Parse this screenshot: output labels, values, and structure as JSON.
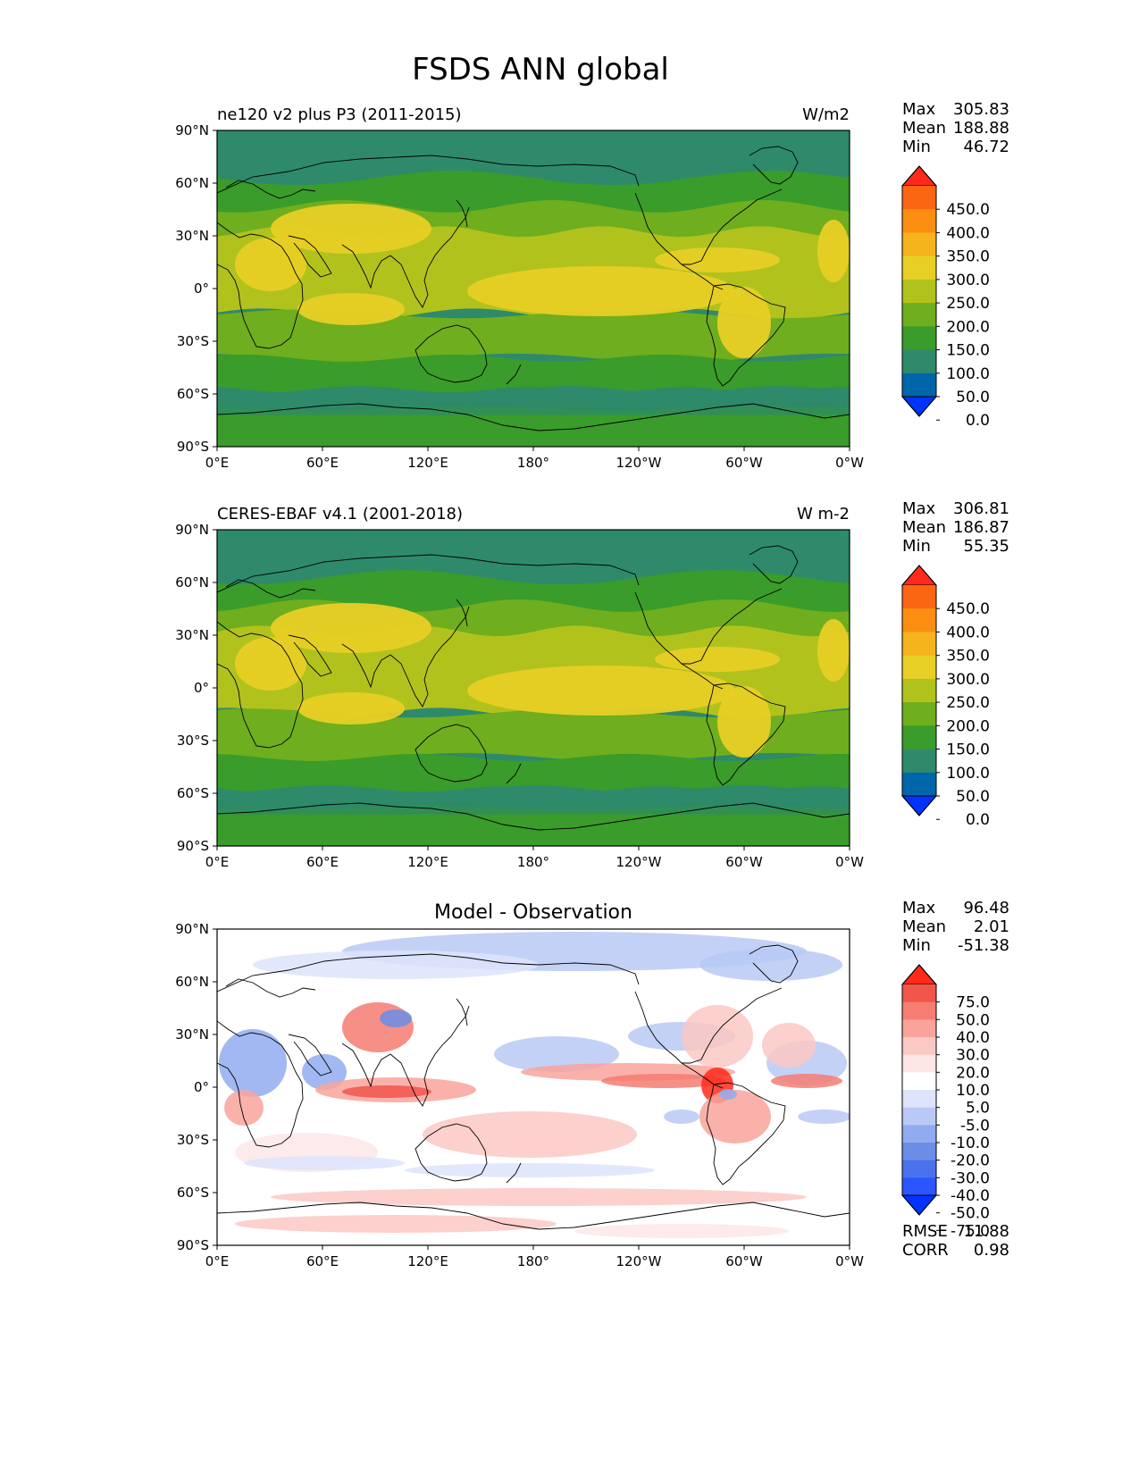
{
  "title": "FSDS ANN global",
  "x_ticks": [
    "0°E",
    "60°E",
    "120°E",
    "180°",
    "120°W",
    "60°W",
    "0°W"
  ],
  "y_ticks": [
    "90°N",
    "60°N",
    "30°N",
    "0°",
    "30°S",
    "60°S",
    "90°S"
  ],
  "colors": {
    "main_scale": [
      "#0033ff",
      "#0066aa",
      "#2e8a6a",
      "#3a9c2a",
      "#6fae1e",
      "#b2c21c",
      "#e8cf25",
      "#f5b31d",
      "#fb8e10",
      "#fb6612",
      "#ff2a1a"
    ],
    "diff_scale": [
      "#0033ff",
      "#2a55ff",
      "#4a72ee",
      "#6b8de6",
      "#90abf0",
      "#b9c9f6",
      "#dde4fb",
      "#ffffff",
      "#fde6e6",
      "#fcc8c4",
      "#f9a39b",
      "#f57d72",
      "#f0564b",
      "#ff2a1a"
    ]
  },
  "panels": [
    {
      "name": "test",
      "left_title": "ne120 v2 plus P3 (2011-2015)",
      "center_title": "",
      "right_title": "W/m2",
      "stats": [
        {
          "label": "Max",
          "value": "305.83"
        },
        {
          "label": "Mean",
          "value": "188.88"
        },
        {
          "label": "Min",
          "value": "46.72"
        }
      ],
      "colorbar_ticks": [
        "450.0",
        "400.0",
        "350.0",
        "300.0",
        "250.0",
        "200.0",
        "150.0",
        "100.0",
        "50.0",
        "0.0"
      ],
      "scale": "main_scale"
    },
    {
      "name": "reference",
      "left_title": "CERES-EBAF v4.1 (2001-2018)",
      "center_title": "",
      "right_title": "W m-2",
      "stats": [
        {
          "label": "Max",
          "value": "306.81"
        },
        {
          "label": "Mean",
          "value": "186.87"
        },
        {
          "label": "Min",
          "value": "55.35"
        }
      ],
      "colorbar_ticks": [
        "450.0",
        "400.0",
        "350.0",
        "300.0",
        "250.0",
        "200.0",
        "150.0",
        "100.0",
        "50.0",
        "0.0"
      ],
      "scale": "main_scale"
    },
    {
      "name": "difference",
      "left_title": "",
      "center_title": "Model - Observation",
      "right_title": "",
      "stats": [
        {
          "label": "Max",
          "value": "96.48"
        },
        {
          "label": "Mean",
          "value": "2.01"
        },
        {
          "label": "Min",
          "value": "-51.38"
        }
      ],
      "colorbar_ticks": [
        "75.0",
        "50.0",
        "40.0",
        "30.0",
        "20.0",
        "10.0",
        "5.0",
        "-5.0",
        "-10.0",
        "-20.0",
        "-30.0",
        "-40.0",
        "-50.0",
        "-75.0"
      ],
      "scale": "diff_scale",
      "footer_stats": [
        {
          "label": "RMSE",
          "value": "11.88"
        },
        {
          "label": "CORR",
          "value": "0.98"
        }
      ]
    }
  ]
}
